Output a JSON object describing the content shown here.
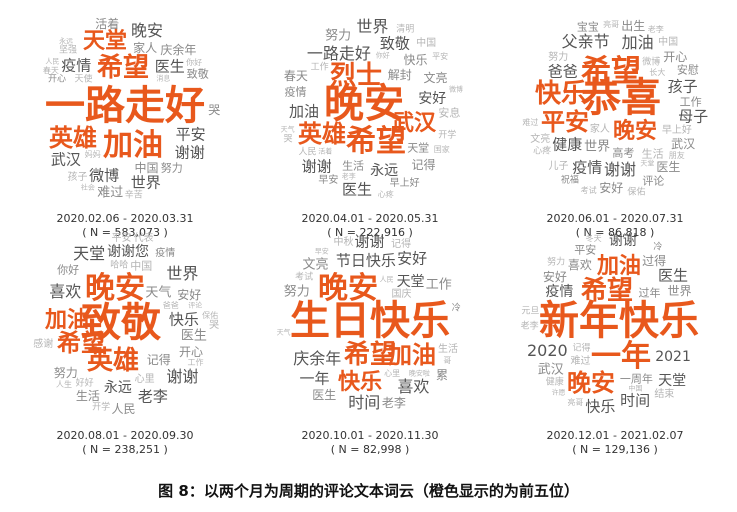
{
  "figure": {
    "caption": "图 8：以两个月为周期的评论文本词云（橙色显示的为前五位）",
    "colors": {
      "top": "#e8581c",
      "gray_dark": "#555555",
      "gray_mid": "#8a8a8a",
      "gray_light": "#b5b5b5"
    },
    "panels": [
      {
        "period": "2020.02.06 - 2020.03.31",
        "count": "( N = 583,073 )",
        "top_words": [
          "一路走好",
          "加油",
          "希望",
          "英雄",
          "天堂"
        ],
        "other_words": [
          "世界",
          "医生",
          "微博",
          "平安",
          "疫情",
          "武汉",
          "晚安",
          "谢谢",
          "庆余年",
          "难过",
          "中国",
          "对不起",
          "活着",
          "家人",
          "致敬",
          "努力",
          "心疼",
          "哭",
          "开心",
          "道歉",
          "坚强",
          "早日康复",
          "保重",
          "辛苦",
          "天使",
          "好人",
          "孩子",
          "安息",
          "人民",
          "永远",
          "社会",
          "谢谢你",
          "奇迹",
          "捐钱",
          "消息",
          "妈妈",
          "健康",
          "逆行",
          "你好",
          "春天"
        ]
      },
      {
        "period": "2020.04.01 - 2020.05.31",
        "count": "( N = 222,916 )",
        "top_words": [
          "晚安",
          "希望",
          "烈士",
          "英雄",
          "武汉"
        ],
        "other_words": [
          "一路走好",
          "谢谢",
          "加油",
          "致敬",
          "安好",
          "世界",
          "永远",
          "医生",
          "春天",
          "快乐",
          "文亮",
          "天堂",
          "生活",
          "疫情",
          "记得",
          "努力",
          "解封",
          "开心",
          "早安",
          "早上好",
          "安息",
          "中国",
          "人民",
          "清明",
          "开学",
          "工作",
          "哭",
          "谢谢您",
          "老李",
          "活着",
          "国家",
          "平安",
          "你好",
          "天气",
          "心疼",
          "微博",
          "中国人"
        ]
      },
      {
        "period": "2020.06.01 - 2020.07.31",
        "count": "( N = 86,818 )",
        "top_words": [
          "恭喜",
          "希望",
          "快乐",
          "平安",
          "晚安"
        ],
        "other_words": [
          "加油",
          "孩子",
          "母子",
          "谢谢",
          "爸爸",
          "父亲节",
          "健康",
          "疫情",
          "评论",
          "高考",
          "武汉",
          "出生",
          "宝宝",
          "开心",
          "医生",
          "安好",
          "世界",
          "安慰",
          "祝福",
          "工作",
          "早上好",
          "儿子",
          "生活",
          "保佑",
          "努力",
          "家人",
          "中国",
          "文亮",
          "长大",
          "考试",
          "心疼",
          "难过",
          "微博",
          "朋友",
          "老李",
          "节日快乐",
          "天堂",
          "亮哥"
        ]
      },
      {
        "period": "2020.08.01 - 2020.09.30",
        "count": "( N = 238,251 )",
        "top_words": [
          "致敬",
          "晚安",
          "英雄",
          "希望",
          "加油"
        ],
        "other_words": [
          "谢谢",
          "天堂",
          "老李",
          "永远",
          "快乐",
          "世界",
          "谢谢您",
          "喜欢",
          "安好",
          "开心",
          "生活",
          "记得",
          "人民",
          "医生",
          "表彰大会",
          "努力",
          "天气",
          "早上好",
          "你好",
          "疫情",
          "平安",
          "中国",
          "心里",
          "开学",
          "哭",
          "感谢",
          "表彰",
          "代表",
          "爸爸",
          "好好",
          "评论",
          "哈哈",
          "保佑",
          "人生",
          "工作"
        ]
      },
      {
        "period": "2020.10.01 - 2020.11.30",
        "count": "( N = 82,998 )",
        "top_words": [
          "生日快乐",
          "晚安",
          "希望",
          "加油",
          "快乐"
        ],
        "other_words": [
          "庆余年",
          "节日快乐",
          "天堂",
          "喜欢",
          "一年",
          "谢谢",
          "时间",
          "安好",
          "努力",
          "文亮",
          "医生",
          "工作",
          "开心",
          "累",
          "难过",
          "老李",
          "早上好",
          "好好",
          "朋友",
          "冷",
          "记得",
          "考试",
          "中秋",
          "国庆",
          "世界",
          "生活",
          "上班",
          "亮哥",
          "哥",
          "天气",
          "晚安啦",
          "早安",
          "心里",
          "结束",
          "人民"
        ]
      },
      {
        "period": "2020.12.01 - 2021.02.07",
        "count": "( N = 129,136 )",
        "top_words": [
          "新年快乐",
          "一年",
          "希望",
          "晚安",
          "加油"
        ],
        "other_words": [
          "2020",
          "2021",
          "谢谢",
          "疫情",
          "快乐",
          "医生",
          "时间",
          "天堂",
          "一周年",
          "喜欢",
          "武汉",
          "过年",
          "过得",
          "世界",
          "平安",
          "安好",
          "家人",
          "永远",
          "冷",
          "生活",
          "记得",
          "结束",
          "回家",
          "开心",
          "难过",
          "老李",
          "工作",
          "好好",
          "新年好",
          "早上好",
          "努力",
          "中国",
          "亮哥",
          "健康",
          "人生",
          "许愿",
          "元旦",
          "冬天",
          "考试"
        ]
      }
    ]
  }
}
